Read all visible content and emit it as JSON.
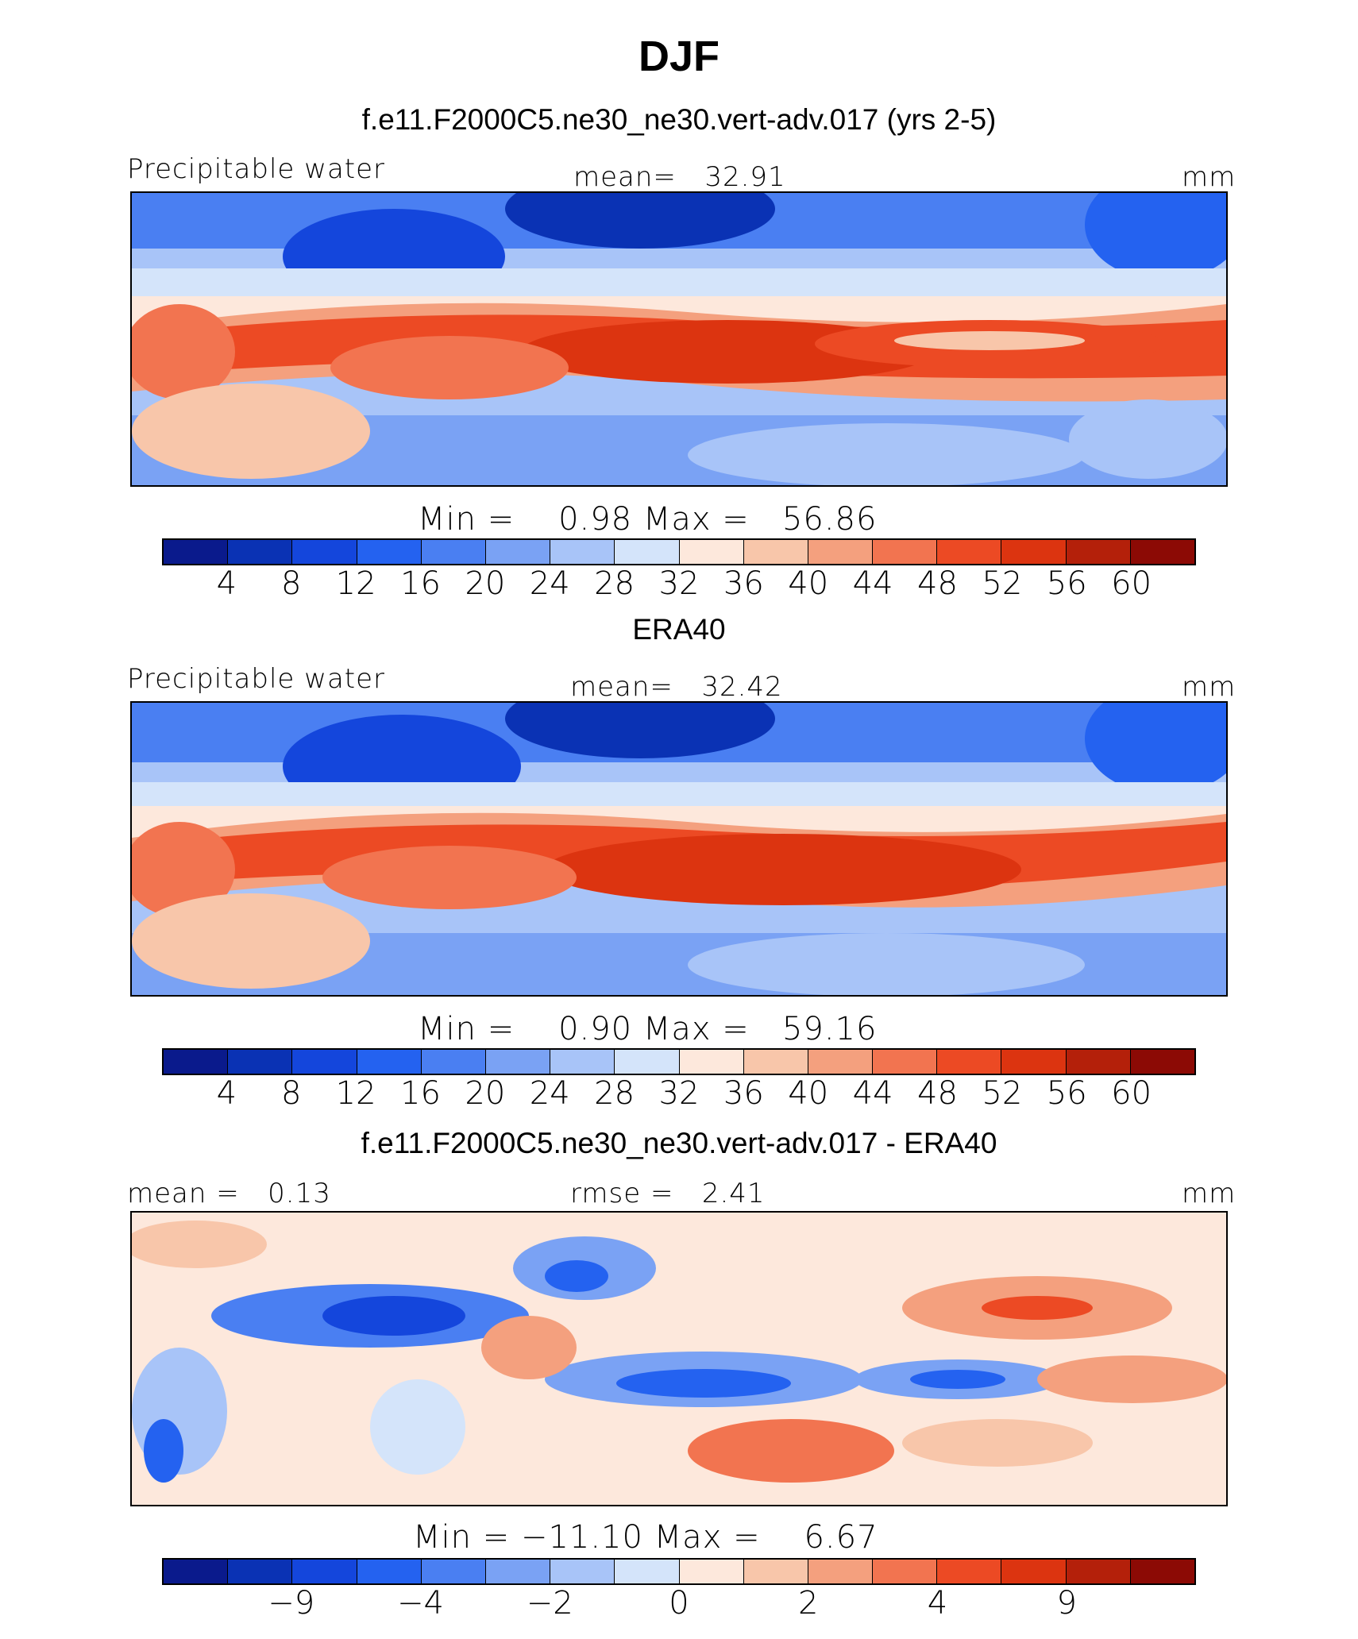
{
  "main_title": "DJF",
  "colors": [
    "#0a1a8c",
    "#0a32b4",
    "#1446dc",
    "#2462f0",
    "#4a7ff2",
    "#7aa2f4",
    "#a8c4f8",
    "#d4e4fa",
    "#fde8dc",
    "#f8c6aa",
    "#f4a07e",
    "#f27450",
    "#ec4a24",
    "#dc3410",
    "#b4200a",
    "#8c0a05"
  ],
  "panels": [
    {
      "title": "f.e11.F2000C5.ne30_ne30.vert-adv.017 (yrs 2-5)",
      "left_label": "Precipitable water",
      "center_label": "mean=   32.91",
      "right_label": "mm",
      "minmax": "Min =    0.98 Max =   56.86",
      "ticks": [
        "4",
        "8",
        "12",
        "16",
        "20",
        "24",
        "28",
        "32",
        "36",
        "40",
        "44",
        "48",
        "52",
        "56",
        "60"
      ]
    },
    {
      "title": "ERA40",
      "left_label": "Precipitable water",
      "center_label": "mean=   32.42",
      "right_label": "mm",
      "minmax": "Min =    0.90 Max =   59.16",
      "ticks": [
        "4",
        "8",
        "12",
        "16",
        "20",
        "24",
        "28",
        "32",
        "36",
        "40",
        "44",
        "48",
        "52",
        "56",
        "60"
      ]
    },
    {
      "title": "f.e11.F2000C5.ne30_ne30.vert-adv.017 - ERA40",
      "left_label": "mean =   0.13",
      "center_label": "rmse =   2.41",
      "right_label": "mm",
      "minmax": "Min = −11.10 Max =    6.67",
      "ticks": [
        "−9",
        "−4",
        "−2",
        "0",
        "2",
        "4",
        "9"
      ]
    }
  ],
  "chart_data": [
    {
      "type": "heatmap",
      "title": "f.e11.F2000C5.ne30_ne30.vert-adv.017 (yrs 2-5)",
      "variable": "Precipitable water",
      "units": "mm",
      "mean": 32.91,
      "min": 0.98,
      "max": 56.86,
      "levels": [
        4,
        8,
        12,
        16,
        20,
        24,
        28,
        32,
        36,
        40,
        44,
        48,
        52,
        56,
        60
      ]
    },
    {
      "type": "heatmap",
      "title": "ERA40",
      "variable": "Precipitable water",
      "units": "mm",
      "mean": 32.42,
      "min": 0.9,
      "max": 59.16,
      "levels": [
        4,
        8,
        12,
        16,
        20,
        24,
        28,
        32,
        36,
        40,
        44,
        48,
        52,
        56,
        60
      ]
    },
    {
      "type": "heatmap",
      "title": "f.e11.F2000C5.ne30_ne30.vert-adv.017 - ERA40",
      "units": "mm",
      "mean": 0.13,
      "rmse": 2.41,
      "min": -11.1,
      "max": 6.67,
      "levels": [
        -9,
        -4,
        -2,
        0,
        2,
        4,
        9
      ]
    }
  ]
}
